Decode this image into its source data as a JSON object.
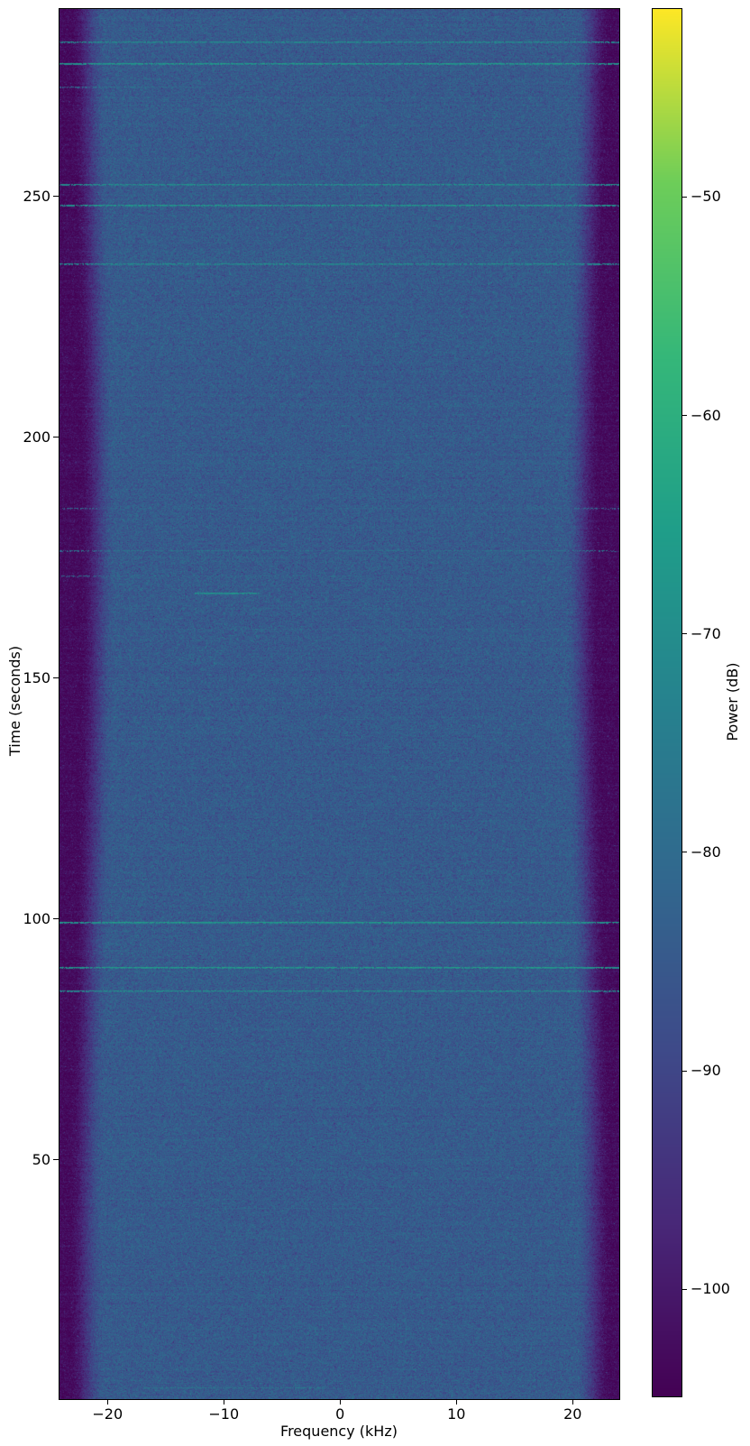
{
  "chart_data": {
    "type": "heatmap",
    "subtype": "spectrogram",
    "title": "",
    "xlabel": "Frequency (kHz)",
    "ylabel": "Time (seconds)",
    "colorbar_label": "Power (dB)",
    "colormap": "viridis",
    "grid": false,
    "legend": false,
    "x_range_khz": [
      -24.13,
      24.01
    ],
    "y_range_s": [
      0.35,
      288.95
    ],
    "color_range_db": [
      -104.9,
      -41.4
    ],
    "x_ticks": {
      "values": [
        -20,
        -10,
        0,
        10,
        20
      ],
      "labels": [
        "−20",
        "−10",
        "0",
        "10",
        "20"
      ]
    },
    "y_ticks": {
      "values": [
        50,
        100,
        150,
        200,
        250
      ],
      "labels": [
        "50",
        "100",
        "150",
        "200",
        "250"
      ]
    },
    "colorbar_ticks": {
      "values": [
        -50,
        -60,
        -70,
        -80,
        -90,
        -100
      ],
      "labels": [
        "−50",
        "−60",
        "−70",
        "−80",
        "−90",
        "−100"
      ]
    },
    "colors": {
      "colormap_low": "#440154",
      "colormap_mid": "#21918c",
      "colormap_high": "#fde725",
      "background_body": "#34678e",
      "tone_line": "#27ad81",
      "axes_text": "#000000"
    },
    "background_noise": {
      "mean_db": -84.5,
      "sigma_db": 3.2,
      "row_jitter_db": 0.5,
      "noise_floor_db": -103.0,
      "floor_sigma_db": 1.9,
      "passband_edge_khz": 21.2,
      "edge_mod_amp_khz": 0.5,
      "rolloff_width_khz": 3.0,
      "seed": 42
    },
    "tones": [
      {
        "time_s": 282.2,
        "f_start_khz": -24.13,
        "f_end_khz": 24.01,
        "power_db": -70,
        "dropout": 0.15
      },
      {
        "time_s": 277.7,
        "f_start_khz": -24.13,
        "f_end_khz": 24.01,
        "power_db": -66,
        "dropout": 0.08
      },
      {
        "time_s": 272.9,
        "f_start_khz": -24.13,
        "f_end_khz": -12.0,
        "power_db": -79,
        "dropout": 0.35
      },
      {
        "time_s": 252.6,
        "f_start_khz": -24.13,
        "f_end_khz": 24.01,
        "power_db": -69,
        "dropout": 0.12
      },
      {
        "time_s": 248.3,
        "f_start_khz": -24.13,
        "f_end_khz": 24.01,
        "power_db": -67,
        "dropout": 0.1
      },
      {
        "time_s": 236.1,
        "f_start_khz": -24.13,
        "f_end_khz": 24.01,
        "power_db": -70,
        "dropout": 0.15
      },
      {
        "time_s": 185.4,
        "f_start_khz": -24.13,
        "f_end_khz": 24.01,
        "power_db": -81,
        "dropout": 0.4
      },
      {
        "time_s": 176.6,
        "f_start_khz": -24.13,
        "f_end_khz": 24.01,
        "power_db": -78,
        "dropout": 0.35
      },
      {
        "time_s": 171.4,
        "f_start_khz": -24.13,
        "f_end_khz": 2.0,
        "power_db": -80,
        "dropout": 0.4
      },
      {
        "time_s": 167.8,
        "f_start_khz": -12.5,
        "f_end_khz": -7.0,
        "power_db": -68,
        "dropout": 0.05
      },
      {
        "time_s": 99.5,
        "f_start_khz": -24.13,
        "f_end_khz": 24.01,
        "power_db": -66,
        "dropout": 0.06
      },
      {
        "time_s": 90.0,
        "f_start_khz": -24.13,
        "f_end_khz": 24.01,
        "power_db": -66,
        "dropout": 0.08
      },
      {
        "time_s": 85.2,
        "f_start_khz": -24.13,
        "f_end_khz": 24.01,
        "power_db": -70,
        "dropout": 0.12
      },
      {
        "time_s": 40.0,
        "f_start_khz": -12.5,
        "f_end_khz": 5.3,
        "power_db": -80,
        "dropout": 0.4
      },
      {
        "time_s": 2.8,
        "f_start_khz": -17.0,
        "f_end_khz": -1.5,
        "power_db": -77,
        "dropout": 0.3
      }
    ]
  }
}
